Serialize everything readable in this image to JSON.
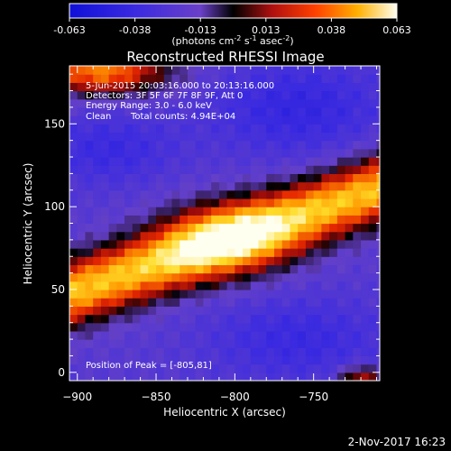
{
  "chart_data": {
    "type": "heatmap",
    "title": "Reconstructed RHESSI Image",
    "colorbar": {
      "min": -0.063,
      "max": 0.063,
      "ticks": [
        "-0.063",
        "-0.038",
        "-0.013",
        "0.013",
        "0.038",
        "0.063"
      ],
      "units_main": "(photons cm",
      "units_exp1": "-2",
      "units_mid": " s",
      "units_exp2": "-1",
      "units_end": " asec",
      "units_exp3": "-2",
      "units_close": ")"
    },
    "annotations": [
      "5-Jun-2015 20:03:16.000 to 20:13:16.000",
      "Detectors: 3F 5F 6F 7F 8F 9F, Att 0",
      "Energy Range: 3.0 - 6.0 keV",
      "Clean",
      "Total counts: 4.94E+04"
    ],
    "peak_label": "Position of Peak = [-805,81]",
    "peak": [
      -805,
      81
    ],
    "xlabel": "Heliocentric X (arcsec)",
    "ylabel": "Heliocentric Y (arcsec)",
    "xlim": [
      -905,
      -708
    ],
    "ylim": [
      -5,
      185
    ],
    "xticks": [
      -900,
      -850,
      -800,
      -750
    ],
    "yticks": [
      0,
      50,
      100,
      150
    ]
  },
  "footer": {
    "timestamp": "2-Nov-2017 16:23"
  }
}
